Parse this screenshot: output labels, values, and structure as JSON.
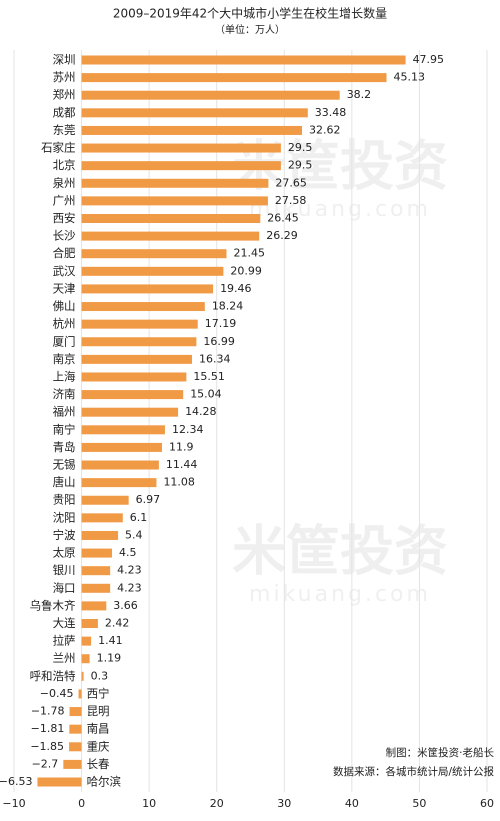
{
  "chart_data": {
    "type": "hbar",
    "title": "2009–2019年42个大中城市小学生在校生增长数量",
    "subtitle": "（单位：万人）",
    "categories": [
      "深圳",
      "苏州",
      "郑州",
      "成都",
      "东莞",
      "石家庄",
      "北京",
      "泉州",
      "广州",
      "西安",
      "长沙",
      "合肥",
      "武汉",
      "天津",
      "佛山",
      "杭州",
      "厦门",
      "南京",
      "上海",
      "济南",
      "福州",
      "南宁",
      "青岛",
      "无锡",
      "唐山",
      "贵阳",
      "沈阳",
      "宁波",
      "太原",
      "银川",
      "海口",
      "乌鲁木齐",
      "大连",
      "拉萨",
      "兰州",
      "呼和浩特",
      "西宁",
      "昆明",
      "南昌",
      "重庆",
      "长春",
      "哈尔滨"
    ],
    "values": [
      47.95,
      45.13,
      38.2,
      33.48,
      32.62,
      29.5,
      29.5,
      27.65,
      27.58,
      26.45,
      26.29,
      21.45,
      20.99,
      19.46,
      18.24,
      17.19,
      16.99,
      16.34,
      15.51,
      15.04,
      14.28,
      12.34,
      11.9,
      11.44,
      11.08,
      6.97,
      6.1,
      5.4,
      4.5,
      4.23,
      4.23,
      3.66,
      2.42,
      1.41,
      1.19,
      0.3,
      -0.45,
      -1.78,
      -1.81,
      -1.85,
      -2.7,
      -6.53
    ],
    "value_labels": [
      "47.95",
      "45.13",
      "38.2",
      "33.48",
      "32.62",
      "29.5",
      "29.5",
      "27.65",
      "27.58",
      "26.45",
      "26.29",
      "21.45",
      "20.99",
      "19.46",
      "18.24",
      "17.19",
      "16.99",
      "16.34",
      "15.51",
      "15.04",
      "14.28",
      "12.34",
      "11.9",
      "11.44",
      "11.08",
      "6.97",
      "6.1",
      "5.4",
      "4.5",
      "4.23",
      "4.23",
      "3.66",
      "2.42",
      "1.41",
      "1.19",
      "0.3",
      "−0.45",
      "−1.78",
      "−1.81",
      "−1.85",
      "−2.7",
      "−6.53"
    ],
    "color": "#f19a45",
    "xlim": [
      -10,
      60
    ],
    "xticks": [
      {
        "value": -10,
        "label": "−10"
      },
      0,
      10,
      20,
      30,
      40,
      50,
      60
    ],
    "grid": true,
    "notes": [
      "制图：米筐投资·老船长",
      "数据来源：各城市统计局/统计公报"
    ],
    "watermark": [
      "米筐投资",
      "mikuang.com"
    ]
  }
}
